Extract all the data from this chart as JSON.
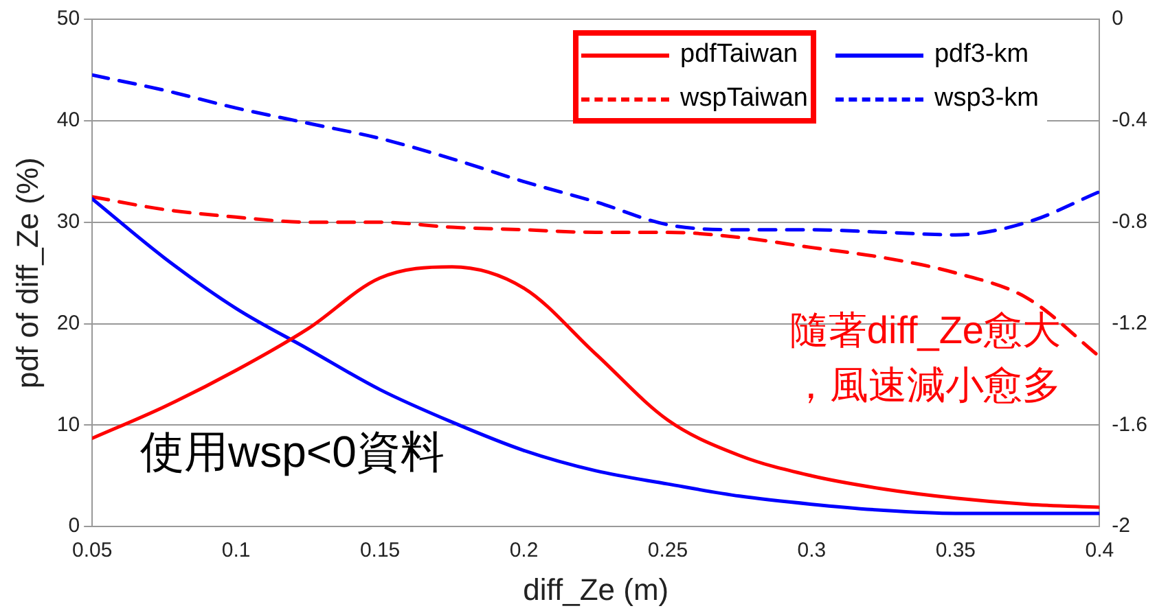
{
  "chart_data": {
    "type": "line",
    "xlabel": "diff_Ze (m)",
    "ylabel": "pdf of diff_Ze (%)",
    "x": [
      0.05,
      0.075,
      0.1,
      0.125,
      0.15,
      0.175,
      0.2,
      0.225,
      0.25,
      0.275,
      0.3,
      0.325,
      0.35,
      0.375,
      0.4
    ],
    "series": [
      {
        "name": "pdfTaiwan",
        "color": "#ff0000",
        "line_style": "solid",
        "values": [
          8.7,
          11.8,
          15.4,
          19.5,
          24.5,
          25.6,
          23.5,
          17,
          10.5,
          7,
          5,
          3.7,
          2.8,
          2.2,
          1.9
        ]
      },
      {
        "name": "pdf3-km",
        "color": "#0000ff",
        "line_style": "solid",
        "values": [
          32.3,
          26.5,
          21.5,
          17.5,
          13.5,
          10.3,
          7.5,
          5.5,
          4.2,
          3,
          2.2,
          1.6,
          1.3,
          1.3,
          1.3
        ]
      },
      {
        "name": "wspTaiwan",
        "color": "#ff0000",
        "line_style": "dashed",
        "axis": "y2",
        "values": [
          -0.7,
          -0.75,
          -0.78,
          -0.8,
          -0.8,
          -0.82,
          -0.83,
          -0.84,
          -0.84,
          -0.86,
          -0.9,
          -0.94,
          -1.0,
          -1.1,
          -1.33
        ]
      },
      {
        "name": "wsp3-km",
        "color": "#0000ff",
        "line_style": "dashed",
        "axis": "y2",
        "values": [
          -0.22,
          -0.28,
          -0.35,
          -0.41,
          -0.47,
          -0.55,
          -0.64,
          -0.72,
          -0.81,
          -0.83,
          -0.83,
          -0.84,
          -0.85,
          -0.8,
          -0.68
        ]
      }
    ],
    "xlim": [
      0.05,
      0.4
    ],
    "xticks": [
      0.05,
      0.1,
      0.15,
      0.2,
      0.25,
      0.3,
      0.35,
      0.4
    ],
    "ylim": [
      0,
      50
    ],
    "yticks": [
      0,
      10,
      20,
      30,
      40,
      50
    ],
    "y2lim": [
      -2,
      0
    ],
    "y2ticks": [
      -2,
      -1.6,
      -1.2,
      -0.8,
      -0.4,
      0
    ],
    "grid": "y",
    "legend": "top right",
    "marker": "none",
    "annotations": [
      "隨著diff_Ze愈大",
      "，風速減小愈多",
      "使用wsp<0資料"
    ]
  }
}
